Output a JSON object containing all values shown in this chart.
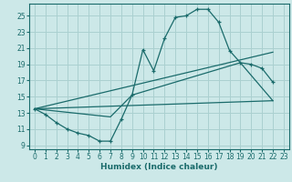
{
  "xlabel": "Humidex (Indice chaleur)",
  "bg_color": "#cce8e8",
  "grid_color": "#aad0d0",
  "line_color": "#1a6b6b",
  "xlim": [
    -0.5,
    23.5
  ],
  "ylim": [
    8.5,
    26.5
  ],
  "yticks": [
    9,
    11,
    13,
    15,
    17,
    19,
    21,
    23,
    25
  ],
  "xticks": [
    0,
    1,
    2,
    3,
    4,
    5,
    6,
    7,
    8,
    9,
    10,
    11,
    12,
    13,
    14,
    15,
    16,
    17,
    18,
    19,
    20,
    21,
    22,
    23
  ],
  "line1_x": [
    0,
    1,
    2,
    3,
    4,
    5,
    6,
    7,
    8,
    9,
    10,
    11,
    12,
    13,
    14,
    15,
    16,
    17,
    18,
    19,
    20,
    21,
    22
  ],
  "line1_y": [
    13.5,
    12.8,
    11.8,
    11.0,
    10.5,
    10.2,
    9.5,
    9.5,
    12.2,
    15.2,
    20.8,
    18.2,
    22.2,
    24.8,
    25.0,
    25.8,
    25.8,
    24.2,
    20.7,
    19.2,
    19.0,
    18.5,
    16.8
  ],
  "line2_x": [
    0,
    22
  ],
  "line2_y": [
    13.5,
    20.5
  ],
  "line3_x": [
    0,
    22
  ],
  "line3_y": [
    13.5,
    14.5
  ],
  "line4_x": [
    0,
    7,
    9,
    19,
    22
  ],
  "line4_y": [
    13.5,
    12.5,
    15.2,
    19.2,
    14.5
  ]
}
